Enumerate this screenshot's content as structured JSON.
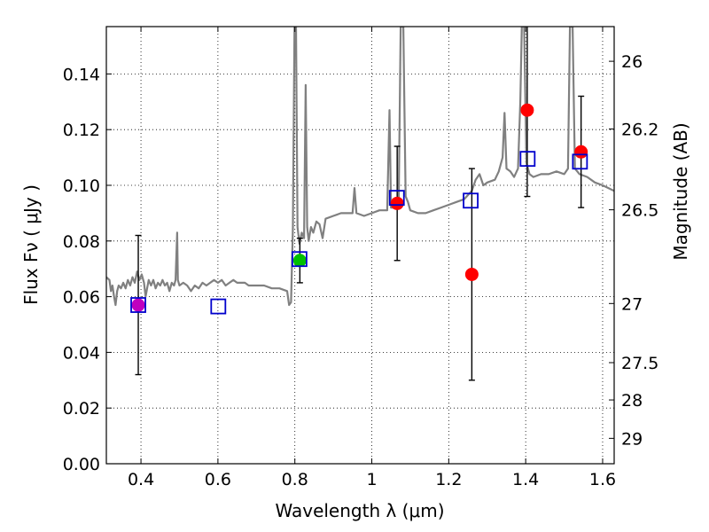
{
  "chart_data": {
    "type": "scatter",
    "title": "",
    "xlabel": "Wavelength  λ (μm)",
    "ylabel": "Flux  Fν  ( μJy )",
    "ylabel_right": "Magnitude (AB)",
    "xlim": [
      0.31,
      1.63
    ],
    "ylim": [
      0.0,
      0.157
    ],
    "grid": true,
    "x_ticks": [
      {
        "value": 0.4,
        "label": "0.4"
      },
      {
        "value": 0.6,
        "label": "0.6"
      },
      {
        "value": 0.8,
        "label": "0.8"
      },
      {
        "value": 1.0,
        "label": "1"
      },
      {
        "value": 1.2,
        "label": "1.2"
      },
      {
        "value": 1.4,
        "label": "1.4"
      },
      {
        "value": 1.6,
        "label": "1.6"
      }
    ],
    "y_ticks": [
      {
        "value": 0.0,
        "label": "0.00"
      },
      {
        "value": 0.02,
        "label": "0.02"
      },
      {
        "value": 0.04,
        "label": "0.04"
      },
      {
        "value": 0.06,
        "label": "0.06"
      },
      {
        "value": 0.08,
        "label": "0.08"
      },
      {
        "value": 0.1,
        "label": "0.10"
      },
      {
        "value": 0.12,
        "label": "0.12"
      },
      {
        "value": 0.14,
        "label": "0.14"
      }
    ],
    "magnitude_ticks": [
      {
        "mag": 26,
        "label": "26"
      },
      {
        "mag": 26.2,
        "label": "26.2"
      },
      {
        "mag": 26.5,
        "label": "26.5"
      },
      {
        "mag": 27,
        "label": "27"
      },
      {
        "mag": 27.5,
        "label": "27.5"
      },
      {
        "mag": 28,
        "label": "28"
      },
      {
        "mag": 29,
        "label": "29"
      }
    ],
    "model_spectrum": {
      "color": "#808080",
      "points": [
        [
          0.31,
          0.067
        ],
        [
          0.318,
          0.066
        ],
        [
          0.322,
          0.062
        ],
        [
          0.326,
          0.064
        ],
        [
          0.33,
          0.06
        ],
        [
          0.334,
          0.057
        ],
        [
          0.338,
          0.062
        ],
        [
          0.342,
          0.064
        ],
        [
          0.348,
          0.063
        ],
        [
          0.354,
          0.065
        ],
        [
          0.36,
          0.063
        ],
        [
          0.366,
          0.066
        ],
        [
          0.372,
          0.064
        ],
        [
          0.378,
          0.067
        ],
        [
          0.384,
          0.065
        ],
        [
          0.39,
          0.069
        ],
        [
          0.396,
          0.066
        ],
        [
          0.402,
          0.068
        ],
        [
          0.408,
          0.065
        ],
        [
          0.412,
          0.06
        ],
        [
          0.416,
          0.063
        ],
        [
          0.42,
          0.066
        ],
        [
          0.426,
          0.064
        ],
        [
          0.432,
          0.066
        ],
        [
          0.438,
          0.063
        ],
        [
          0.444,
          0.065
        ],
        [
          0.45,
          0.064
        ],
        [
          0.456,
          0.066
        ],
        [
          0.462,
          0.064
        ],
        [
          0.468,
          0.065
        ],
        [
          0.474,
          0.062
        ],
        [
          0.48,
          0.065
        ],
        [
          0.486,
          0.064
        ],
        [
          0.49,
          0.066
        ],
        [
          0.494,
          0.083
        ],
        [
          0.496,
          0.066
        ],
        [
          0.5,
          0.064
        ],
        [
          0.51,
          0.065
        ],
        [
          0.52,
          0.064
        ],
        [
          0.53,
          0.062
        ],
        [
          0.54,
          0.064
        ],
        [
          0.55,
          0.063
        ],
        [
          0.56,
          0.065
        ],
        [
          0.57,
          0.064
        ],
        [
          0.58,
          0.065
        ],
        [
          0.59,
          0.066
        ],
        [
          0.6,
          0.065
        ],
        [
          0.61,
          0.066
        ],
        [
          0.62,
          0.064
        ],
        [
          0.63,
          0.065
        ],
        [
          0.64,
          0.066
        ],
        [
          0.65,
          0.065
        ],
        [
          0.66,
          0.065
        ],
        [
          0.67,
          0.065
        ],
        [
          0.68,
          0.064
        ],
        [
          0.7,
          0.064
        ],
        [
          0.72,
          0.064
        ],
        [
          0.74,
          0.063
        ],
        [
          0.76,
          0.063
        ],
        [
          0.78,
          0.062
        ],
        [
          0.785,
          0.057
        ],
        [
          0.79,
          0.058
        ],
        [
          0.795,
          0.085
        ],
        [
          0.799,
          0.157
        ],
        [
          0.803,
          0.157
        ],
        [
          0.807,
          0.085
        ],
        [
          0.812,
          0.079
        ],
        [
          0.818,
          0.083
        ],
        [
          0.824,
          0.081
        ],
        [
          0.828,
          0.136
        ],
        [
          0.832,
          0.085
        ],
        [
          0.836,
          0.08
        ],
        [
          0.842,
          0.085
        ],
        [
          0.848,
          0.083
        ],
        [
          0.856,
          0.087
        ],
        [
          0.864,
          0.086
        ],
        [
          0.872,
          0.081
        ],
        [
          0.88,
          0.088
        ],
        [
          0.9,
          0.089
        ],
        [
          0.92,
          0.09
        ],
        [
          0.94,
          0.09
        ],
        [
          0.95,
          0.09
        ],
        [
          0.955,
          0.099
        ],
        [
          0.96,
          0.09
        ],
        [
          0.98,
          0.089
        ],
        [
          1.0,
          0.09
        ],
        [
          1.02,
          0.091
        ],
        [
          1.04,
          0.091
        ],
        [
          1.046,
          0.127
        ],
        [
          1.05,
          0.092
        ],
        [
          1.06,
          0.092
        ],
        [
          1.07,
          0.095
        ],
        [
          1.075,
          0.157
        ],
        [
          1.082,
          0.157
        ],
        [
          1.088,
          0.096
        ],
        [
          1.094,
          0.094
        ],
        [
          1.1,
          0.091
        ],
        [
          1.12,
          0.09
        ],
        [
          1.14,
          0.09
        ],
        [
          1.16,
          0.091
        ],
        [
          1.18,
          0.092
        ],
        [
          1.2,
          0.093
        ],
        [
          1.22,
          0.094
        ],
        [
          1.24,
          0.095
        ],
        [
          1.26,
          0.098
        ],
        [
          1.27,
          0.102
        ],
        [
          1.28,
          0.104
        ],
        [
          1.29,
          0.1
        ],
        [
          1.3,
          0.101
        ],
        [
          1.32,
          0.102
        ],
        [
          1.33,
          0.105
        ],
        [
          1.34,
          0.11
        ],
        [
          1.345,
          0.126
        ],
        [
          1.35,
          0.106
        ],
        [
          1.36,
          0.105
        ],
        [
          1.37,
          0.103
        ],
        [
          1.38,
          0.106
        ],
        [
          1.386,
          0.13
        ],
        [
          1.39,
          0.157
        ],
        [
          1.396,
          0.157
        ],
        [
          1.402,
          0.108
        ],
        [
          1.41,
          0.104
        ],
        [
          1.42,
          0.103
        ],
        [
          1.44,
          0.104
        ],
        [
          1.46,
          0.104
        ],
        [
          1.48,
          0.105
        ],
        [
          1.5,
          0.104
        ],
        [
          1.51,
          0.106
        ],
        [
          1.515,
          0.157
        ],
        [
          1.522,
          0.157
        ],
        [
          1.528,
          0.106
        ],
        [
          1.54,
          0.104
        ],
        [
          1.56,
          0.103
        ],
        [
          1.58,
          0.101
        ],
        [
          1.6,
          0.1
        ],
        [
          1.615,
          0.099
        ],
        [
          1.63,
          0.098
        ]
      ]
    },
    "measured": {
      "marker": "circle",
      "color": "#ff0000",
      "points": [
        {
          "x": 0.393,
          "y": 0.057,
          "err": 0.025,
          "color": "#bf00bf"
        },
        {
          "x": 0.813,
          "y": 0.073,
          "err": 0.008,
          "color": "#00bf00"
        },
        {
          "x": 1.066,
          "y": 0.0935,
          "err": 0.0205,
          "color": "#ff0000"
        },
        {
          "x": 1.26,
          "y": 0.068,
          "err": 0.038,
          "color": "#ff0000"
        },
        {
          "x": 1.404,
          "y": 0.127,
          "err": 0.031,
          "color": "#ff0000"
        },
        {
          "x": 1.544,
          "y": 0.112,
          "err": 0.02,
          "color": "#ff0000"
        }
      ]
    },
    "model_bands": {
      "marker": "open-square",
      "color": "#0000cc",
      "points": [
        {
          "x": 0.393,
          "y": 0.057
        },
        {
          "x": 0.601,
          "y": 0.0565
        },
        {
          "x": 0.812,
          "y": 0.0735
        },
        {
          "x": 1.065,
          "y": 0.0955
        },
        {
          "x": 1.257,
          "y": 0.0945
        },
        {
          "x": 1.405,
          "y": 0.1095
        },
        {
          "x": 1.541,
          "y": 0.1085
        }
      ]
    }
  }
}
